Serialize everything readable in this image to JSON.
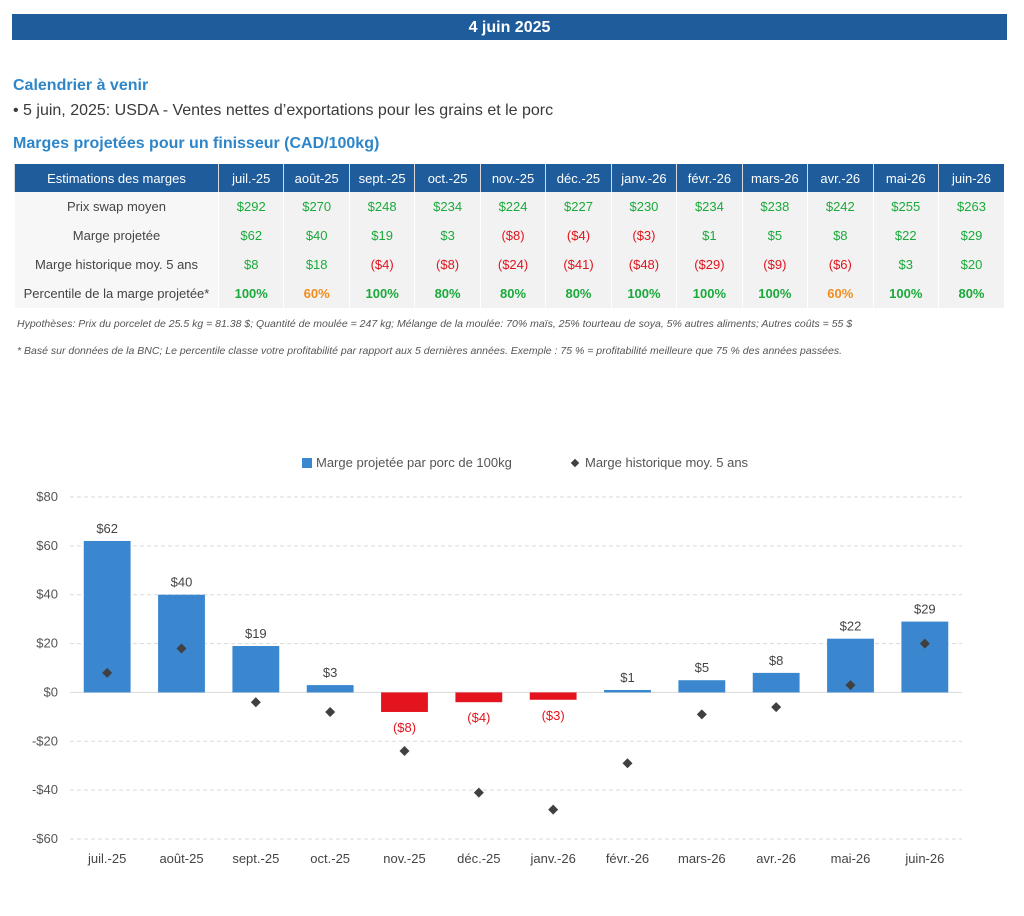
{
  "header": {
    "date": "4 juin 2025"
  },
  "calendar": {
    "title": "Calendrier à venir",
    "items": [
      "• 5 juin, 2025: USDA - Ventes nettes d’exportations pour les grains et le porc"
    ]
  },
  "margins_section": {
    "title": "Marges projetées pour un finisseur (CAD/100kg)"
  },
  "table": {
    "corner": "Estimations des marges",
    "months": [
      "juil.-25",
      "août-25",
      "sept.-25",
      "oct.-25",
      "nov.-25",
      "déc.-25",
      "janv.-26",
      "févr.-26",
      "mars-26",
      "avr.-26",
      "mai-26",
      "juin-26"
    ],
    "rows": [
      {
        "label": "Prix swap moyen",
        "cells": [
          "$292",
          "$270",
          "$248",
          "$234",
          "$224",
          "$227",
          "$230",
          "$234",
          "$238",
          "$242",
          "$255",
          "$263"
        ],
        "tone": [
          "pos",
          "pos",
          "pos",
          "pos",
          "pos",
          "pos",
          "pos",
          "pos",
          "pos",
          "pos",
          "pos",
          "pos"
        ]
      },
      {
        "label": "Marge projetée",
        "cells": [
          "$62",
          "$40",
          "$19",
          "$3",
          "($8)",
          "($4)",
          "($3)",
          "$1",
          "$5",
          "$8",
          "$22",
          "$29"
        ],
        "tone": [
          "pos",
          "pos",
          "pos",
          "pos",
          "neg",
          "neg",
          "neg",
          "pos",
          "pos",
          "pos",
          "pos",
          "pos"
        ]
      },
      {
        "label": "Marge historique moy. 5 ans",
        "cells": [
          "$8",
          "$18",
          "($4)",
          "($8)",
          "($24)",
          "($41)",
          "($48)",
          "($29)",
          "($9)",
          "($6)",
          "$3",
          "$20"
        ],
        "tone": [
          "pos",
          "pos",
          "neg",
          "neg",
          "neg",
          "neg",
          "neg",
          "neg",
          "neg",
          "neg",
          "pos",
          "pos"
        ]
      },
      {
        "label": "Percentile de la marge projetée*",
        "cells": [
          "100%",
          "60%",
          "100%",
          "80%",
          "80%",
          "80%",
          "100%",
          "100%",
          "100%",
          "60%",
          "100%",
          "80%"
        ],
        "tone": [
          "g",
          "o",
          "g",
          "g",
          "g",
          "g",
          "g",
          "g",
          "g",
          "o",
          "g",
          "g"
        ]
      }
    ]
  },
  "notes": {
    "hypotheses": "Hypothèses: Prix du porcelet de 25.5 kg = 81.38 $; Quantité de moulée = 247 kg; Mélange de la moulée: 70% maïs, 25% tourteau de soya, 5% autres aliments; Autres coûts = 55 $",
    "footnote": "* Basé sur données de la BNC; Le percentile classe votre profitabilité par rapport aux 5 dernières années. Exemple : 75 % = profitabilité meilleure que 75 % des années passées."
  },
  "colors": {
    "bar_positive": "#3a87d0",
    "bar_negative": "#e3141e",
    "marker": "#404040",
    "header_bg": "#1f5c9b"
  },
  "chart_data": {
    "type": "bar",
    "categories": [
      "juil.-25",
      "août-25",
      "sept.-25",
      "oct.-25",
      "nov.-25",
      "déc.-25",
      "janv.-26",
      "févr.-26",
      "mars-26",
      "avr.-26",
      "mai-26",
      "juin-26"
    ],
    "series": [
      {
        "name": "Marge projetée par porc de 100kg",
        "kind": "bar",
        "values": [
          62,
          40,
          19,
          3,
          -8,
          -4,
          -3,
          1,
          5,
          8,
          22,
          29
        ],
        "data_labels": [
          "$62",
          "$40",
          "$19",
          "$3",
          "($8)",
          "($4)",
          "($3)",
          "$1",
          "$5",
          "$8",
          "$22",
          "$29"
        ]
      },
      {
        "name": "Marge historique moy. 5 ans",
        "kind": "scatter",
        "marker": "diamond",
        "values": [
          8,
          18,
          -4,
          -8,
          -24,
          -41,
          -48,
          -29,
          -9,
          -6,
          3,
          20
        ]
      }
    ],
    "ylim": [
      -60,
      80
    ],
    "yticks": [
      80,
      60,
      40,
      20,
      0,
      -20,
      -40,
      -60
    ],
    "ytick_labels": [
      "$80",
      "$60",
      "$40",
      "$20",
      "$0",
      "-$20",
      "-$40",
      "-$60"
    ],
    "grid": true,
    "legend": "top-center"
  }
}
